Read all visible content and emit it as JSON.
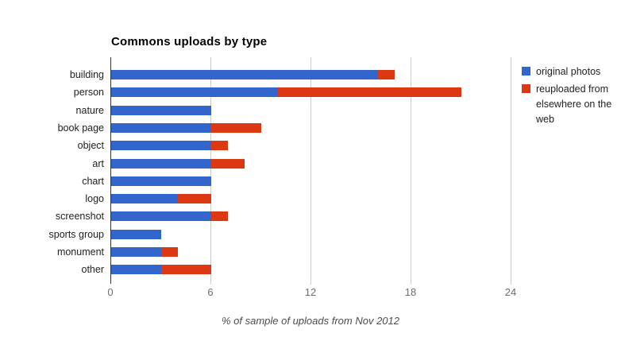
{
  "chart": {
    "title": "Commons uploads by type",
    "axis_title": "% of sample of uploads from Nov 2012"
  },
  "legend": {
    "items": [
      {
        "label": "original photos",
        "color": "#3366cc"
      },
      {
        "label": "reuploaded from elsewhere on the web",
        "color": "#dc3912"
      }
    ]
  },
  "chart_data": {
    "type": "bar",
    "orientation": "horizontal",
    "stacked": true,
    "title": "Commons uploads by type",
    "xlabel": "% of sample of uploads from Nov 2012",
    "categories": [
      "building",
      "person",
      "nature",
      "book page",
      "object",
      "art",
      "chart",
      "logo",
      "screenshot",
      "sports group",
      "monument",
      "other"
    ],
    "series": [
      {
        "name": "original photos",
        "color": "#3366cc",
        "values": [
          16,
          10,
          6,
          6,
          6,
          6,
          6,
          4,
          6,
          3,
          3,
          3
        ]
      },
      {
        "name": "reuploaded from elsewhere on the web",
        "color": "#dc3912",
        "values": [
          1,
          11,
          0,
          3,
          1,
          2,
          0,
          2,
          1,
          0,
          1,
          3
        ]
      }
    ],
    "x_ticks": [
      0,
      6,
      12,
      18,
      24
    ],
    "xlim": [
      0,
      25
    ],
    "grid": true,
    "legend_position": "right",
    "colors": {
      "accent_blue": "#3366cc",
      "accent_red": "#dc3912",
      "gridline": "#cccccc",
      "tick_text": "#6e6e6e",
      "label_text": "#222222"
    }
  }
}
